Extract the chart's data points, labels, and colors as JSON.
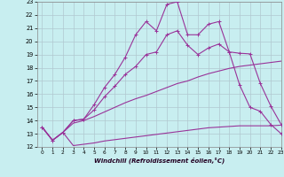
{
  "xlabel": "Windchill (Refroidissement éolien,°C)",
  "background_color": "#c8eef0",
  "grid_color": "#b0c8d0",
  "line_color": "#993399",
  "xlim": [
    -0.5,
    23
  ],
  "ylim": [
    12,
    23
  ],
  "xticks": [
    0,
    1,
    2,
    3,
    4,
    5,
    6,
    7,
    8,
    9,
    10,
    11,
    12,
    13,
    14,
    15,
    16,
    17,
    18,
    19,
    20,
    21,
    22,
    23
  ],
  "yticks": [
    12,
    13,
    14,
    15,
    16,
    17,
    18,
    19,
    20,
    21,
    22,
    23
  ],
  "line1_x": [
    0,
    1,
    2,
    3,
    4,
    5,
    6,
    7,
    8,
    9,
    10,
    11,
    12,
    13,
    14,
    15,
    16,
    17,
    18,
    19,
    20,
    21,
    22,
    23
  ],
  "line1_y": [
    13.5,
    12.5,
    13.1,
    12.1,
    12.2,
    12.3,
    12.45,
    12.55,
    12.65,
    12.75,
    12.85,
    12.95,
    13.05,
    13.15,
    13.25,
    13.35,
    13.45,
    13.5,
    13.55,
    13.6,
    13.6,
    13.6,
    13.6,
    13.65
  ],
  "line2_x": [
    0,
    1,
    2,
    3,
    4,
    5,
    6,
    7,
    8,
    9,
    10,
    11,
    12,
    13,
    14,
    15,
    16,
    17,
    18,
    19,
    20,
    21,
    22,
    23
  ],
  "line2_y": [
    13.5,
    12.5,
    13.1,
    13.8,
    14.0,
    14.3,
    14.65,
    15.0,
    15.35,
    15.65,
    15.9,
    16.2,
    16.5,
    16.8,
    17.0,
    17.3,
    17.55,
    17.75,
    17.95,
    18.1,
    18.2,
    18.3,
    18.4,
    18.5
  ],
  "line3_x": [
    0,
    1,
    2,
    3,
    4,
    5,
    6,
    7,
    8,
    9,
    10,
    11,
    12,
    13,
    14,
    15,
    16,
    17,
    18,
    19,
    20,
    21,
    22,
    23
  ],
  "line3_y": [
    13.5,
    12.5,
    13.1,
    14.0,
    14.1,
    14.8,
    15.8,
    16.6,
    17.5,
    18.1,
    19.0,
    19.2,
    20.5,
    20.8,
    19.7,
    19.0,
    19.5,
    19.8,
    19.2,
    19.1,
    19.05,
    16.8,
    15.1,
    13.7
  ],
  "line4_x": [
    0,
    1,
    2,
    3,
    4,
    5,
    6,
    7,
    8,
    9,
    10,
    11,
    12,
    13,
    14,
    15,
    16,
    17,
    18,
    19,
    20,
    21,
    22,
    23
  ],
  "line4_y": [
    13.5,
    12.5,
    13.1,
    14.0,
    14.1,
    15.2,
    16.5,
    17.5,
    18.8,
    20.5,
    21.5,
    20.8,
    22.8,
    23.0,
    20.5,
    20.5,
    21.3,
    21.5,
    19.2,
    16.7,
    15.0,
    14.7,
    13.7,
    13.0
  ],
  "marker": "+"
}
